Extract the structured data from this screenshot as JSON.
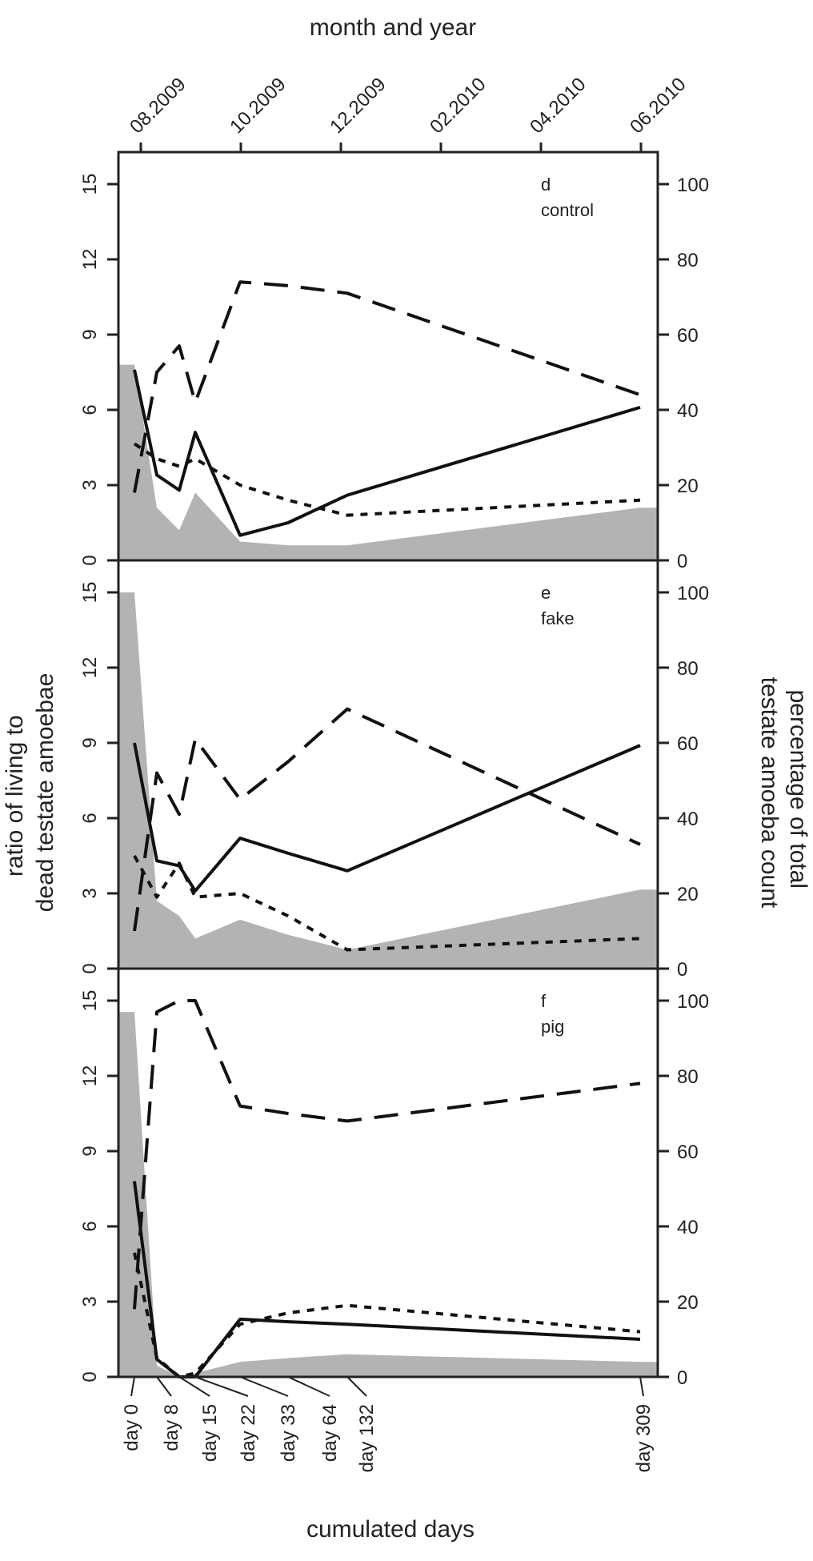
{
  "figure": {
    "top_axis_title": "month and year",
    "bottom_axis_title": "cumulated days",
    "left_axis_title_line1": "ratio of living to",
    "left_axis_title_line2": "dead testate amoebae",
    "right_axis_title_line1": "percentage of total",
    "right_axis_title_line2": "testate amoeba count",
    "month_ticks": [
      "08.2009",
      "10.2009",
      "12.2009",
      "02.2010",
      "04.2010",
      "06.2010"
    ],
    "day_ticks": [
      "day 0",
      "day 8",
      "day 15",
      "day 22",
      "day 33",
      "day 64",
      "day 132",
      "day 309"
    ],
    "left_ticks": [
      "0",
      "3",
      "6",
      "9",
      "12",
      "15"
    ],
    "right_ticks": [
      "0",
      "20",
      "40",
      "60",
      "80",
      "100"
    ],
    "colors": {
      "line": "#111111",
      "fill": "#b3b3b3",
      "frame": "#222222"
    }
  },
  "chart_data": [
    {
      "type": "line",
      "id": "d",
      "panel_letter": "d",
      "panel_name": "control",
      "x": [
        0,
        8,
        15,
        22,
        33,
        64,
        132,
        309
      ],
      "xlabel": "cumulated days",
      "ylabel_left": "ratio of living to dead testate amoebae",
      "ylabel_right": "percentage of total testate amoeba count",
      "ylim_left": [
        0,
        15
      ],
      "ylim_right": [
        0,
        100
      ],
      "series": [
        {
          "name": "ratio living/dead",
          "style": "solid",
          "axis": "left",
          "values": [
            7.6,
            3.4,
            2.8,
            5.1,
            1.0,
            1.5,
            2.6,
            6.1
          ]
        },
        {
          "name": "long-dashed series",
          "style": "longdash",
          "axis": "right",
          "values": [
            18,
            50,
            57,
            42,
            74,
            73,
            71,
            44
          ]
        },
        {
          "name": "short-dashed series",
          "style": "shortdash",
          "axis": "right",
          "values": [
            31,
            27,
            25,
            27,
            20,
            16,
            12,
            16
          ]
        },
        {
          "name": "grey filled series",
          "style": "area",
          "axis": "right",
          "values": [
            52,
            14,
            8,
            18,
            5,
            4,
            4,
            14
          ]
        }
      ]
    },
    {
      "type": "line",
      "id": "e",
      "panel_letter": "e",
      "panel_name": "fake",
      "x": [
        0,
        8,
        15,
        22,
        33,
        64,
        132,
        309
      ],
      "xlabel": "cumulated days",
      "ylabel_left": "ratio of living to dead testate amoebae",
      "ylabel_right": "percentage of total testate amoeba count",
      "ylim_left": [
        0,
        15
      ],
      "ylim_right": [
        0,
        100
      ],
      "series": [
        {
          "name": "ratio living/dead",
          "style": "solid",
          "axis": "left",
          "values": [
            9.0,
            4.3,
            4.1,
            3.1,
            5.2,
            4.6,
            3.9,
            8.9
          ]
        },
        {
          "name": "long-dashed series",
          "style": "longdash",
          "axis": "right",
          "values": [
            10,
            52,
            41,
            61,
            45,
            55,
            69,
            33
          ]
        },
        {
          "name": "short-dashed series",
          "style": "shortdash",
          "axis": "right",
          "values": [
            30,
            19,
            28,
            19,
            20,
            14,
            5,
            8
          ]
        },
        {
          "name": "grey filled series",
          "style": "area",
          "axis": "right",
          "values": [
            100,
            18,
            14,
            8,
            13,
            9,
            5,
            21
          ]
        }
      ]
    },
    {
      "type": "line",
      "id": "f",
      "panel_letter": "f",
      "panel_name": "pig",
      "x": [
        0,
        8,
        15,
        22,
        33,
        64,
        132,
        309
      ],
      "xlabel": "cumulated days",
      "ylabel_left": "ratio of living to dead testate amoebae",
      "ylabel_right": "percentage of total testate amoeba count",
      "ylim_left": [
        0,
        15
      ],
      "ylim_right": [
        0,
        100
      ],
      "series": [
        {
          "name": "ratio living/dead",
          "style": "solid",
          "axis": "left",
          "values": [
            7.8,
            0.7,
            0.0,
            0.0,
            2.3,
            2.2,
            2.1,
            1.5
          ]
        },
        {
          "name": "long-dashed series",
          "style": "longdash",
          "axis": "right",
          "values": [
            18,
            97,
            100,
            100,
            72,
            70,
            68,
            78
          ]
        },
        {
          "name": "short-dashed series",
          "style": "shortdash",
          "axis": "right",
          "values": [
            33,
            5,
            0,
            1,
            14,
            17,
            19,
            12
          ]
        },
        {
          "name": "grey filled series",
          "style": "area",
          "axis": "right",
          "values": [
            97,
            3,
            0,
            1,
            4,
            5,
            6,
            4
          ]
        }
      ]
    }
  ]
}
